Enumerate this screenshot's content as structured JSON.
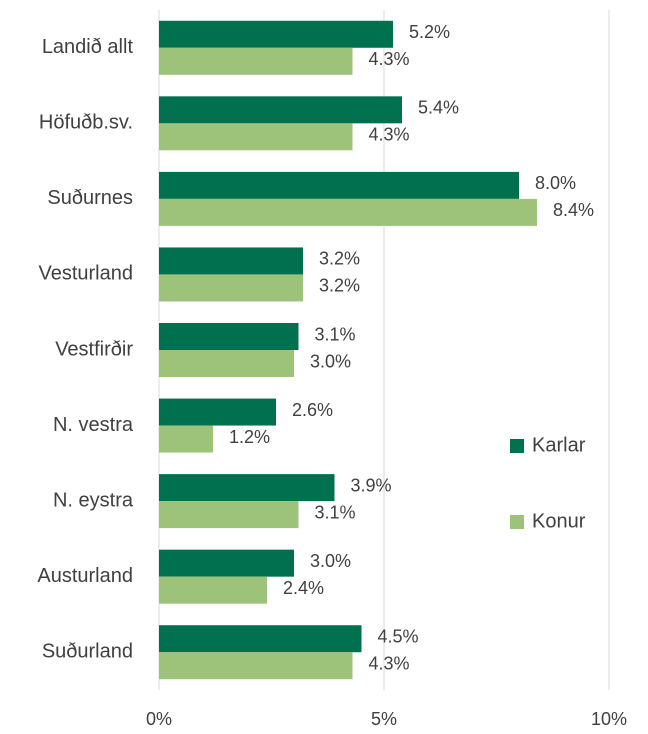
{
  "chart_data": {
    "type": "bar",
    "orientation": "horizontal",
    "categories": [
      "Landið allt",
      "Höfuðb.sv.",
      "Suðurnes",
      "Vesturland",
      "Vestfirðir",
      "N. vestra",
      "N. eystra",
      "Austurland",
      "Suðurland"
    ],
    "series": [
      {
        "name": "Karlar",
        "color": "#00704f",
        "values": [
          5.2,
          5.4,
          8.0,
          3.2,
          3.1,
          2.6,
          3.9,
          3.0,
          4.5
        ],
        "value_labels": [
          "5.2%",
          "5.4%",
          "8.0%",
          "3.2%",
          "3.1%",
          "2.6%",
          "3.9%",
          "3.0%",
          "4.5%"
        ]
      },
      {
        "name": "Konur",
        "color": "#9dc37a",
        "values": [
          4.3,
          4.3,
          8.4,
          3.2,
          3.0,
          1.2,
          3.1,
          2.4,
          4.3
        ],
        "value_labels": [
          "4.3%",
          "4.3%",
          "8.4%",
          "3.2%",
          "3.0%",
          "1.2%",
          "3.1%",
          "2.4%",
          "4.3%"
        ]
      }
    ],
    "xlim": [
      0,
      10
    ],
    "xticks": [
      {
        "value": 0,
        "label": "0%"
      },
      {
        "value": 5,
        "label": "5%"
      },
      {
        "value": 10,
        "label": "10%"
      }
    ],
    "grid": true,
    "legend": "right"
  }
}
